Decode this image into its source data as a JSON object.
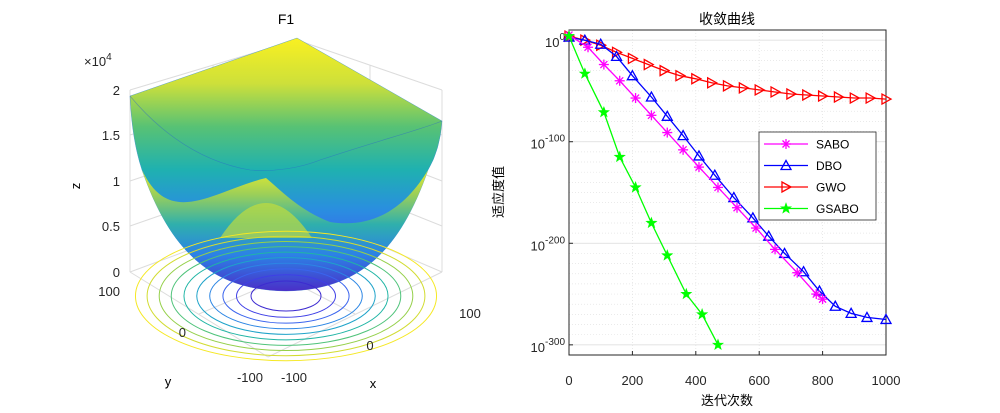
{
  "chart_data": [
    {
      "type": "surface3d",
      "title": "F1",
      "function": "z = x^2 + y^2 (sphere)",
      "xlabel": "x",
      "ylabel": "y",
      "zlabel": "z",
      "xlim": [
        -100,
        100
      ],
      "ylim": [
        -100,
        100
      ],
      "zlim": [
        0,
        20000
      ],
      "x_ticks": [
        "-100",
        "0",
        "100"
      ],
      "y_ticks": [
        "-100",
        "0",
        "100"
      ],
      "z_ticks": [
        "0",
        "0.5",
        "1",
        "1.5",
        "2"
      ],
      "z_exponent_base": "×10",
      "z_exponent_power": "4",
      "contour_levels": [
        800,
        1600,
        2600,
        3800,
        5200,
        6800,
        8600,
        10500,
        12600,
        14800
      ]
    },
    {
      "type": "line",
      "scale_y": "log",
      "title": "收敛曲线",
      "xlabel": "迭代次数",
      "ylabel": "适应度值",
      "xlim": [
        0,
        1000
      ],
      "ylim_log10": [
        -310,
        10
      ],
      "x_ticks": [
        "0",
        "200",
        "400",
        "600",
        "800",
        "1000"
      ],
      "y_ticks": [
        {
          "base": "10",
          "exp": "0",
          "log": 0
        },
        {
          "base": "10",
          "exp": "-100",
          "log": -100
        },
        {
          "base": "10",
          "exp": "-200",
          "log": -200
        },
        {
          "base": "10",
          "exp": "-300",
          "log": -300
        }
      ],
      "series": [
        {
          "name": "SABO",
          "color": "#ff00ff",
          "marker": "asterisk",
          "x": [
            0,
            60,
            110,
            160,
            210,
            260,
            310,
            360,
            410,
            470,
            530,
            590,
            650,
            720,
            780,
            800
          ],
          "log10_y": [
            5,
            -7,
            -24,
            -40,
            -57,
            -74,
            -91,
            -108,
            -125,
            -145,
            -165,
            -185,
            -206,
            -229,
            -250,
            -255
          ]
        },
        {
          "name": "DBO",
          "color": "#0000ff",
          "marker": "triangle-up",
          "x": [
            0,
            50,
            100,
            150,
            200,
            260,
            310,
            360,
            410,
            460,
            520,
            580,
            630,
            680,
            740,
            790,
            840,
            890,
            940,
            1000
          ],
          "log10_y": [
            3,
            0,
            -4,
            -16,
            -35,
            -56,
            -75,
            -94,
            -114,
            -133,
            -155,
            -175,
            -193,
            -210,
            -228,
            -247,
            -262,
            -269,
            -273,
            -275
          ]
        },
        {
          "name": "GWO",
          "color": "#ff0000",
          "marker": "triangle-right",
          "x": [
            0,
            50,
            100,
            150,
            200,
            250,
            300,
            350,
            400,
            450,
            500,
            550,
            600,
            650,
            700,
            750,
            800,
            850,
            900,
            950,
            1000
          ],
          "log10_y": [
            4,
            0,
            -5,
            -12,
            -18,
            -24,
            -30,
            -35,
            -38,
            -42,
            -45,
            -47,
            -49,
            -51,
            -53,
            -54,
            -55,
            -56,
            -57,
            -57,
            -58
          ]
        },
        {
          "name": "GSABO",
          "color": "#00ff00",
          "marker": "star",
          "x": [
            0,
            50,
            110,
            160,
            210,
            260,
            310,
            370,
            420,
            470
          ],
          "log10_y": [
            4,
            -33,
            -71,
            -115,
            -145,
            -180,
            -212,
            -250,
            -270,
            -300
          ]
        }
      ],
      "legend_position": "right"
    }
  ]
}
